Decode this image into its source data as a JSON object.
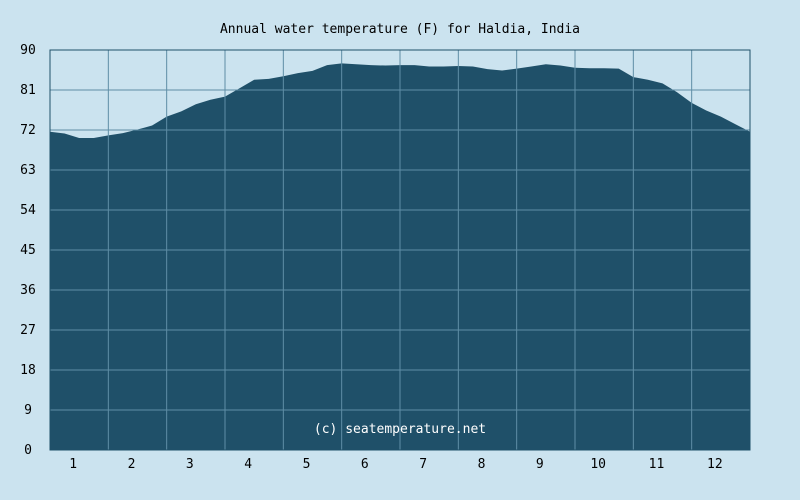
{
  "chart_data": {
    "type": "area",
    "title": "Annual water temperature (F) for Haldia, India",
    "xlabel": "",
    "ylabel": "",
    "ylim": [
      0,
      90
    ],
    "xlim": [
      0.5,
      12.5
    ],
    "y_ticks": [
      "0",
      "9",
      "18",
      "27",
      "36",
      "45",
      "54",
      "63",
      "72",
      "81",
      "90"
    ],
    "x_ticks": [
      "1",
      "2",
      "3",
      "4",
      "5",
      "6",
      "7",
      "8",
      "9",
      "10",
      "11",
      "12"
    ],
    "grid": true,
    "copyright": "(c) seatemperature.net",
    "colors": {
      "fill": "#1f5069",
      "background": "#cbe3ef",
      "grid": "#5f8ea6"
    },
    "series": [
      {
        "x": [
          0.5,
          0.75,
          1.0,
          1.25,
          1.5,
          1.75,
          2.0,
          2.25,
          2.5,
          2.75,
          3.0,
          3.25,
          3.5,
          3.75,
          4.0,
          4.25,
          4.5,
          4.75,
          5.0,
          5.25,
          5.5,
          5.75,
          6.0,
          6.25,
          6.5,
          6.75,
          7.0,
          7.25,
          7.5,
          7.75,
          8.0,
          8.25,
          8.5,
          8.75,
          9.0,
          9.25,
          9.5,
          9.75,
          10.0,
          10.25,
          10.5,
          10.75,
          11.0,
          11.25,
          11.5,
          11.75,
          12.0,
          12.25,
          12.5
        ],
        "values": [
          71.6,
          71.2,
          70.2,
          70.2,
          70.8,
          71.3,
          72.1,
          73.0,
          75.0,
          76.2,
          77.8,
          78.8,
          79.5,
          81.4,
          83.3,
          83.5,
          84.1,
          84.8,
          85.3,
          86.6,
          87.0,
          86.8,
          86.6,
          86.5,
          86.6,
          86.6,
          86.3,
          86.3,
          86.4,
          86.3,
          85.7,
          85.4,
          85.8,
          86.3,
          86.8,
          86.5,
          86.0,
          85.9,
          85.9,
          85.8,
          83.9,
          83.3,
          82.5,
          80.5,
          78.1,
          76.4,
          75.0,
          73.3,
          71.6
        ]
      }
    ]
  }
}
